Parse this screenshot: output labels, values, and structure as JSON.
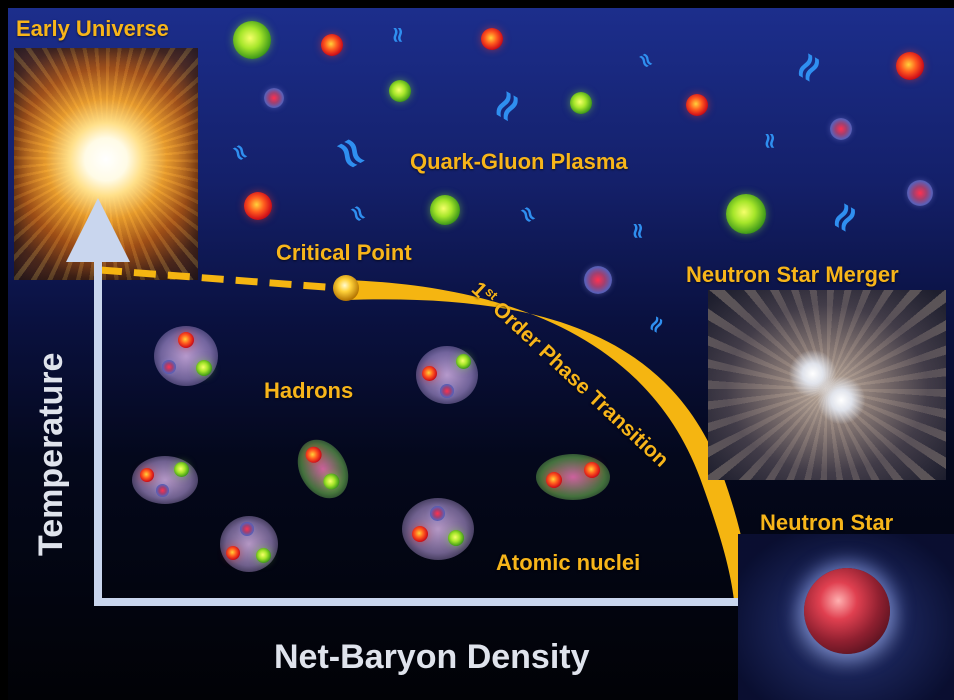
{
  "labels": {
    "early_universe": "Early Universe",
    "qgp": "Quark-Gluon Plasma",
    "critical_point": "Critical Point",
    "phase_transition_sup": "st",
    "phase_transition_main": "1",
    "phase_transition_rest": " Order Phase Transition",
    "merger": "Neutron Star Merger",
    "hadrons": "Hadrons",
    "atomic_nuclei": "Atomic nuclei",
    "neutron_star": "Neutron Star"
  },
  "axes": {
    "x_label": "Net-Baryon Density",
    "y_label": "Temperature"
  },
  "gluon_glyph": "≈",
  "colors": {
    "accent": "#f7b51a",
    "axis": "#c9d6ee",
    "curve": "#f5b511"
  }
}
